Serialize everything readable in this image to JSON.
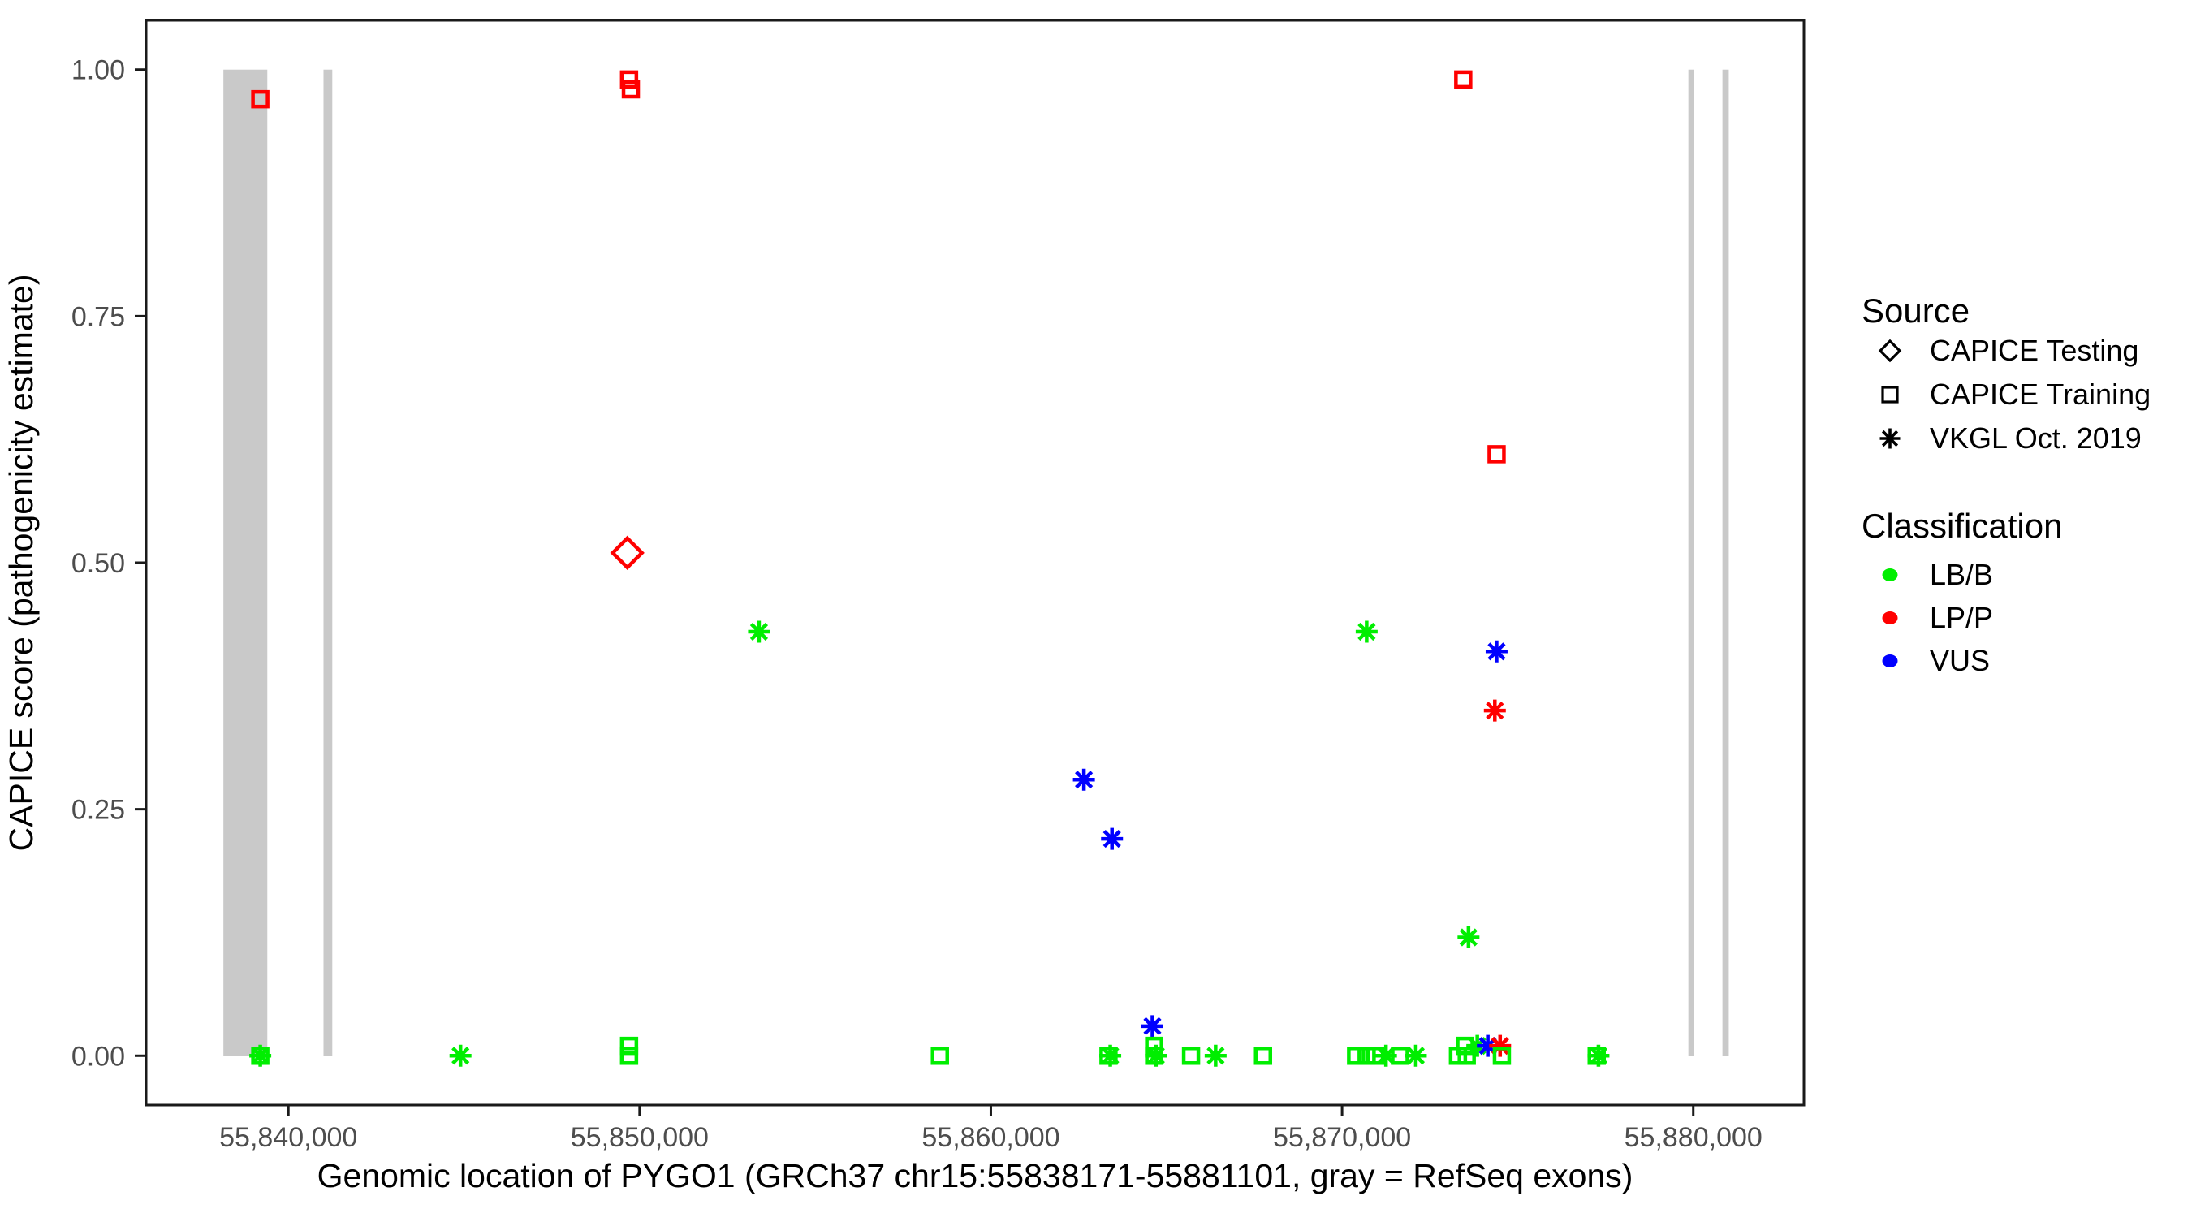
{
  "chart_data": {
    "type": "scatter",
    "title": "",
    "xlabel": "Genomic location of PYGO1 (GRCh37 chr15:55838171-55881101, gray = RefSeq exons)",
    "ylabel": "CAPICE score (pathogenicity estimate)",
    "gene_region": "chr15:55838171-55881101",
    "xlim": [
      55835950,
      55883150
    ],
    "ylim": [
      -0.05,
      1.05
    ],
    "grid": "off",
    "legend_position": "right",
    "x_ticks": [
      {
        "value": 55840000,
        "label": "55,840,000"
      },
      {
        "value": 55850000,
        "label": "55,850,000"
      },
      {
        "value": 55860000,
        "label": "55,860,000"
      },
      {
        "value": 55870000,
        "label": "55,870,000"
      },
      {
        "value": 55880000,
        "label": "55,880,000"
      }
    ],
    "y_ticks": [
      {
        "value": 0.0,
        "label": "0.00"
      },
      {
        "value": 0.25,
        "label": "0.25"
      },
      {
        "value": 0.5,
        "label": "0.50"
      },
      {
        "value": 0.75,
        "label": "0.75"
      },
      {
        "value": 1.0,
        "label": "1.00"
      }
    ],
    "exons_note": "gray = RefSeq exons, bars span score 0 to 1",
    "exons": [
      {
        "start": 55838150,
        "end": 55839400
      },
      {
        "start": 55841000,
        "end": 55841250
      },
      {
        "start": 55879860,
        "end": 55880020
      },
      {
        "start": 55880830,
        "end": 55881010
      }
    ],
    "points": [
      {
        "pos": 55839200,
        "score": 0.97,
        "source": "CAPICE Training",
        "classification": "LP/P"
      },
      {
        "pos": 55839200,
        "score": 0.0,
        "source": "CAPICE Training",
        "classification": "LB/B"
      },
      {
        "pos": 55839200,
        "score": 0.0,
        "source": "VKGL Oct. 2019",
        "classification": "LB/B"
      },
      {
        "pos": 55844900,
        "score": 0.0,
        "source": "VKGL Oct. 2019",
        "classification": "LB/B"
      },
      {
        "pos": 55849700,
        "score": 0.99,
        "source": "CAPICE Training",
        "classification": "LP/P"
      },
      {
        "pos": 55849750,
        "score": 0.98,
        "source": "CAPICE Training",
        "classification": "LP/P"
      },
      {
        "pos": 55849650,
        "score": 0.51,
        "source": "CAPICE Testing",
        "classification": "LP/P"
      },
      {
        "pos": 55849700,
        "score": 0.01,
        "source": "CAPICE Training",
        "classification": "LB/B"
      },
      {
        "pos": 55849700,
        "score": 0.0,
        "source": "CAPICE Training",
        "classification": "LB/B"
      },
      {
        "pos": 55853400,
        "score": 0.43,
        "source": "VKGL Oct. 2019",
        "classification": "LB/B"
      },
      {
        "pos": 55858550,
        "score": 0.0,
        "source": "CAPICE Training",
        "classification": "LB/B"
      },
      {
        "pos": 55862650,
        "score": 0.28,
        "source": "VKGL Oct. 2019",
        "classification": "VUS"
      },
      {
        "pos": 55863350,
        "score": 0.0,
        "source": "CAPICE Training",
        "classification": "LB/B"
      },
      {
        "pos": 55863400,
        "score": 0.0,
        "source": "VKGL Oct. 2019",
        "classification": "LB/B"
      },
      {
        "pos": 55863450,
        "score": 0.22,
        "source": "VKGL Oct. 2019",
        "classification": "VUS"
      },
      {
        "pos": 55864600,
        "score": 0.03,
        "source": "VKGL Oct. 2019",
        "classification": "VUS"
      },
      {
        "pos": 55864650,
        "score": 0.01,
        "source": "CAPICE Training",
        "classification": "LB/B"
      },
      {
        "pos": 55864650,
        "score": 0.0,
        "source": "CAPICE Training",
        "classification": "LB/B"
      },
      {
        "pos": 55864700,
        "score": 0.0,
        "source": "VKGL Oct. 2019",
        "classification": "LB/B"
      },
      {
        "pos": 55865700,
        "score": 0.0,
        "source": "CAPICE Training",
        "classification": "LB/B"
      },
      {
        "pos": 55866400,
        "score": 0.0,
        "source": "VKGL Oct. 2019",
        "classification": "LB/B"
      },
      {
        "pos": 55867750,
        "score": 0.0,
        "source": "CAPICE Training",
        "classification": "LB/B"
      },
      {
        "pos": 55870400,
        "score": 0.0,
        "source": "CAPICE Training",
        "classification": "LB/B"
      },
      {
        "pos": 55870700,
        "score": 0.0,
        "source": "CAPICE Training",
        "classification": "LB/B"
      },
      {
        "pos": 55870950,
        "score": 0.0,
        "source": "CAPICE Training",
        "classification": "LB/B"
      },
      {
        "pos": 55870700,
        "score": 0.43,
        "source": "VKGL Oct. 2019",
        "classification": "LB/B"
      },
      {
        "pos": 55871250,
        "score": 0.0,
        "source": "VKGL Oct. 2019",
        "classification": "LB/B"
      },
      {
        "pos": 55871650,
        "score": 0.0,
        "source": "CAPICE Training",
        "classification": "LB/B"
      },
      {
        "pos": 55872100,
        "score": 0.0,
        "source": "VKGL Oct. 2019",
        "classification": "LB/B"
      },
      {
        "pos": 55873300,
        "score": 0.0,
        "source": "CAPICE Training",
        "classification": "LB/B"
      },
      {
        "pos": 55873450,
        "score": 0.99,
        "source": "CAPICE Training",
        "classification": "LP/P"
      },
      {
        "pos": 55873500,
        "score": 0.01,
        "source": "CAPICE Training",
        "classification": "LB/B"
      },
      {
        "pos": 55873550,
        "score": 0.0,
        "source": "CAPICE Training",
        "classification": "LB/B"
      },
      {
        "pos": 55873600,
        "score": 0.12,
        "source": "VKGL Oct. 2019",
        "classification": "LB/B"
      },
      {
        "pos": 55873850,
        "score": 0.01,
        "source": "VKGL Oct. 2019",
        "classification": "LB/B"
      },
      {
        "pos": 55874150,
        "score": 0.01,
        "source": "VKGL Oct. 2019",
        "classification": "VUS"
      },
      {
        "pos": 55874400,
        "score": 0.61,
        "source": "CAPICE Training",
        "classification": "LP/P"
      },
      {
        "pos": 55874400,
        "score": 0.41,
        "source": "VKGL Oct. 2019",
        "classification": "VUS"
      },
      {
        "pos": 55874350,
        "score": 0.35,
        "source": "VKGL Oct. 2019",
        "classification": "LP/P"
      },
      {
        "pos": 55874500,
        "score": 0.01,
        "source": "VKGL Oct. 2019",
        "classification": "LP/P"
      },
      {
        "pos": 55874550,
        "score": 0.0,
        "source": "CAPICE Training",
        "classification": "LB/B"
      },
      {
        "pos": 55877250,
        "score": 0.0,
        "source": "CAPICE Training",
        "classification": "LB/B"
      },
      {
        "pos": 55877300,
        "score": 0.0,
        "source": "VKGL Oct. 2019",
        "classification": "LB/B"
      }
    ]
  },
  "legend": {
    "source": {
      "title": "Source",
      "items": [
        {
          "label": "CAPICE Testing",
          "marker": "diamond"
        },
        {
          "label": "CAPICE Training",
          "marker": "square"
        },
        {
          "label": "VKGL Oct. 2019",
          "marker": "asterisk"
        }
      ]
    },
    "classification": {
      "title": "Classification",
      "items": [
        {
          "label": "LB/B",
          "color": "#00ee00"
        },
        {
          "label": "LP/P",
          "color": "#ff0000"
        },
        {
          "label": "VUS",
          "color": "#0000ff"
        }
      ]
    }
  },
  "colors": {
    "LB/B": "#00ee00",
    "LP/P": "#ff0000",
    "VUS": "#0000ff",
    "exon": "#c9c9c9",
    "panel_border": "#1a1a1a",
    "tick": "#1a1a1a",
    "tick_label": "#4d4d4d"
  }
}
